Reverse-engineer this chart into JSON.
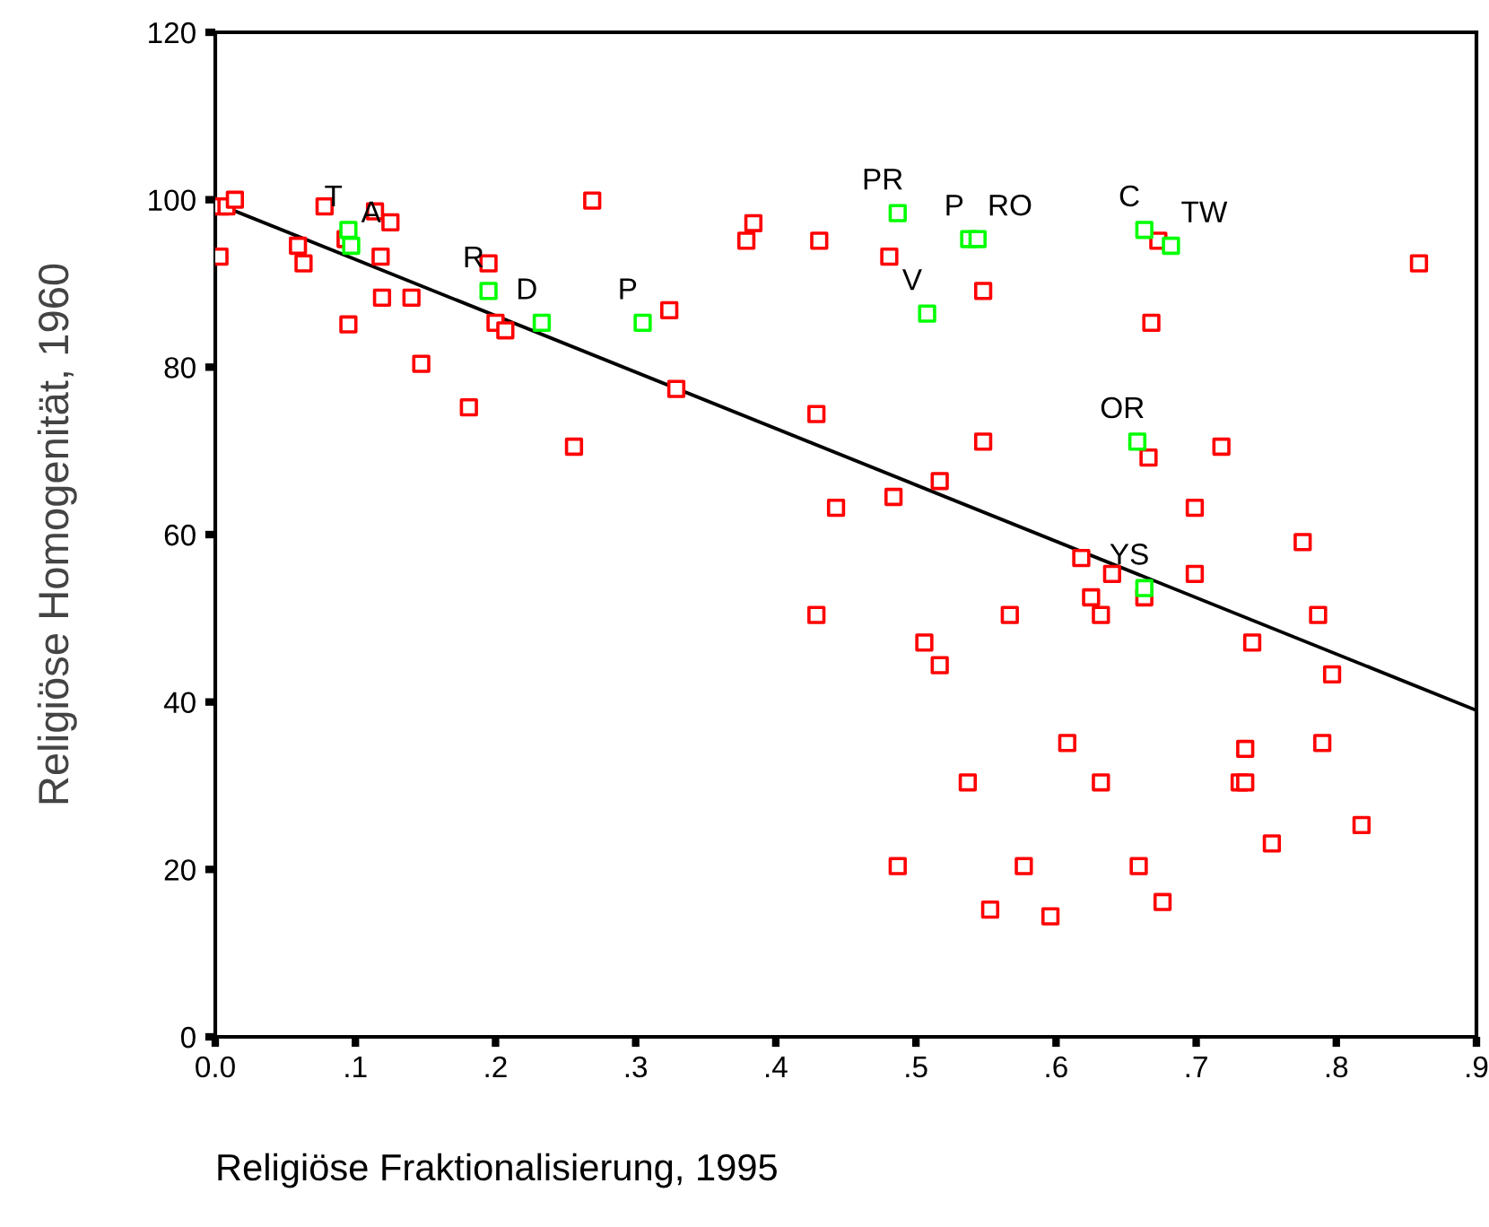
{
  "chart_data": {
    "type": "scatter",
    "xlabel": "Religiöse Fraktionalisierung, 1995",
    "ylabel": "Religiöse Homogenität, 1960",
    "xlim": [
      0,
      0.9
    ],
    "ylim": [
      0,
      120
    ],
    "xticks": [
      {
        "value": 0,
        "label": "0.0"
      },
      {
        "value": 0.1,
        "label": ".1"
      },
      {
        "value": 0.2,
        "label": ".2"
      },
      {
        "value": 0.3,
        "label": ".3"
      },
      {
        "value": 0.4,
        "label": ".4"
      },
      {
        "value": 0.5,
        "label": ".5"
      },
      {
        "value": 0.6,
        "label": ".6"
      },
      {
        "value": 0.7,
        "label": ".7"
      },
      {
        "value": 0.8,
        "label": ".8"
      },
      {
        "value": 0.9,
        "label": ".9"
      }
    ],
    "yticks": [
      0,
      20,
      40,
      60,
      80,
      100,
      120
    ],
    "marker": "square",
    "grid": false,
    "legend": false,
    "series": [
      {
        "color": "#ff0000",
        "x": [
          0.003,
          0.004,
          0.008,
          0.014,
          0.059,
          0.063,
          0.078,
          0.093,
          0.095,
          0.114,
          0.118,
          0.119,
          0.125,
          0.14,
          0.147,
          0.181,
          0.195,
          0.2,
          0.207,
          0.256,
          0.269,
          0.324,
          0.329,
          0.379,
          0.384,
          0.429,
          0.429,
          0.431,
          0.443,
          0.481,
          0.484,
          0.487,
          0.506,
          0.517,
          0.517,
          0.537,
          0.548,
          0.548,
          0.553,
          0.567,
          0.577,
          0.596,
          0.608,
          0.618,
          0.625,
          0.632,
          0.632,
          0.64,
          0.659,
          0.663,
          0.666,
          0.668,
          0.673,
          0.676,
          0.699,
          0.699,
          0.718,
          0.731,
          0.735,
          0.735,
          0.74,
          0.754,
          0.776,
          0.787,
          0.79,
          0.797,
          0.818,
          0.859
        ],
        "values": [
          93.2,
          99.2,
          99.2,
          100,
          94.5,
          92.4,
          99.2,
          95.3,
          85.1,
          98.6,
          93.2,
          88.3,
          97.3,
          88.3,
          80.4,
          75.2,
          92.4,
          85.3,
          84.4,
          70.5,
          99.9,
          86.8,
          77.4,
          95.1,
          97.2,
          74.4,
          50.4,
          95.1,
          63.2,
          93.2,
          64.5,
          20.4,
          47.1,
          66.4,
          44.4,
          30.4,
          89.1,
          71.1,
          15.2,
          50.4,
          20.4,
          14.4,
          35.1,
          57.2,
          52.5,
          50.4,
          30.4,
          55.3,
          20.4,
          52.5,
          69.2,
          85.3,
          95.1,
          16.1,
          63.2,
          55.3,
          70.5,
          30.4,
          30.4,
          34.4,
          47.1,
          23.1,
          59.1,
          50.4,
          35.1,
          43.3,
          25.3,
          92.4
        ]
      },
      {
        "color": "#00ff00",
        "x": [
          0.095,
          0.097,
          0.195,
          0.233,
          0.305,
          0.487,
          0.538,
          0.544,
          0.508,
          0.663,
          0.682,
          0.658,
          0.663
        ],
        "values": [
          96.4,
          94.5,
          89.1,
          85.3,
          85.3,
          98.4,
          95.3,
          95.3,
          86.4,
          96.4,
          94.5,
          71.1,
          53.6
        ]
      },
      {
        "type": "line",
        "color": "#000000",
        "marker": "none",
        "line_style": "solid",
        "x": [
          0,
          0.9
        ],
        "values": [
          99.6,
          39.0
        ]
      }
    ],
    "annotations": [
      {
        "text": "T",
        "x": 0.095,
        "y": 96.4
      },
      {
        "text": "A",
        "x": 0.097,
        "y": 94.5
      },
      {
        "text": "R",
        "x": 0.195,
        "y": 89.1
      },
      {
        "text": "D",
        "x": 0.233,
        "y": 85.3
      },
      {
        "text": "P",
        "x": 0.305,
        "y": 85.3
      },
      {
        "text": "PR",
        "x": 0.487,
        "y": 98.4
      },
      {
        "text": "P",
        "x": 0.538,
        "y": 95.3
      },
      {
        "text": "RO",
        "x": 0.544,
        "y": 95.3
      },
      {
        "text": "V",
        "x": 0.508,
        "y": 86.4
      },
      {
        "text": "C",
        "x": 0.663,
        "y": 96.4
      },
      {
        "text": "TW",
        "x": 0.682,
        "y": 94.5
      },
      {
        "text": "OR",
        "x": 0.658,
        "y": 71.1
      },
      {
        "text": "YS",
        "x": 0.663,
        "y": 53.6
      }
    ]
  }
}
